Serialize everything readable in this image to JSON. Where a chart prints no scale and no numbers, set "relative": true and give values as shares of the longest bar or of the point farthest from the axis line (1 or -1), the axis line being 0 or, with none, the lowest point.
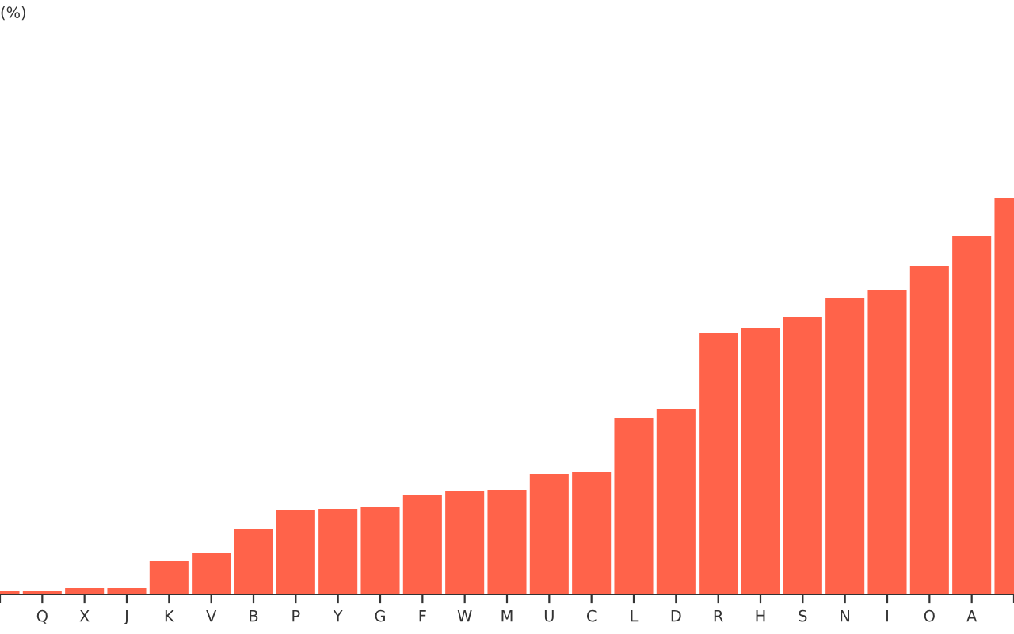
{
  "chart_data": {
    "type": "bar",
    "annotations": [
      "(%)"
    ],
    "relative": true,
    "color": "#ff634a",
    "categories": [
      null,
      "Q",
      "X",
      "J",
      "K",
      "V",
      "B",
      "P",
      "Y",
      "G",
      "F",
      "W",
      "M",
      "U",
      "C",
      "L",
      "D",
      "R",
      "H",
      "S",
      "N",
      "I",
      "O",
      "A",
      null
    ],
    "values": [
      0.008,
      0.008,
      0.016,
      0.016,
      0.084,
      0.104,
      0.164,
      0.212,
      0.216,
      0.22,
      0.252,
      0.26,
      0.264,
      0.304,
      0.308,
      0.444,
      0.468,
      0.66,
      0.672,
      0.7,
      0.748,
      0.768,
      0.828,
      0.904,
      1.0
    ],
    "grid": false,
    "legend": false
  }
}
